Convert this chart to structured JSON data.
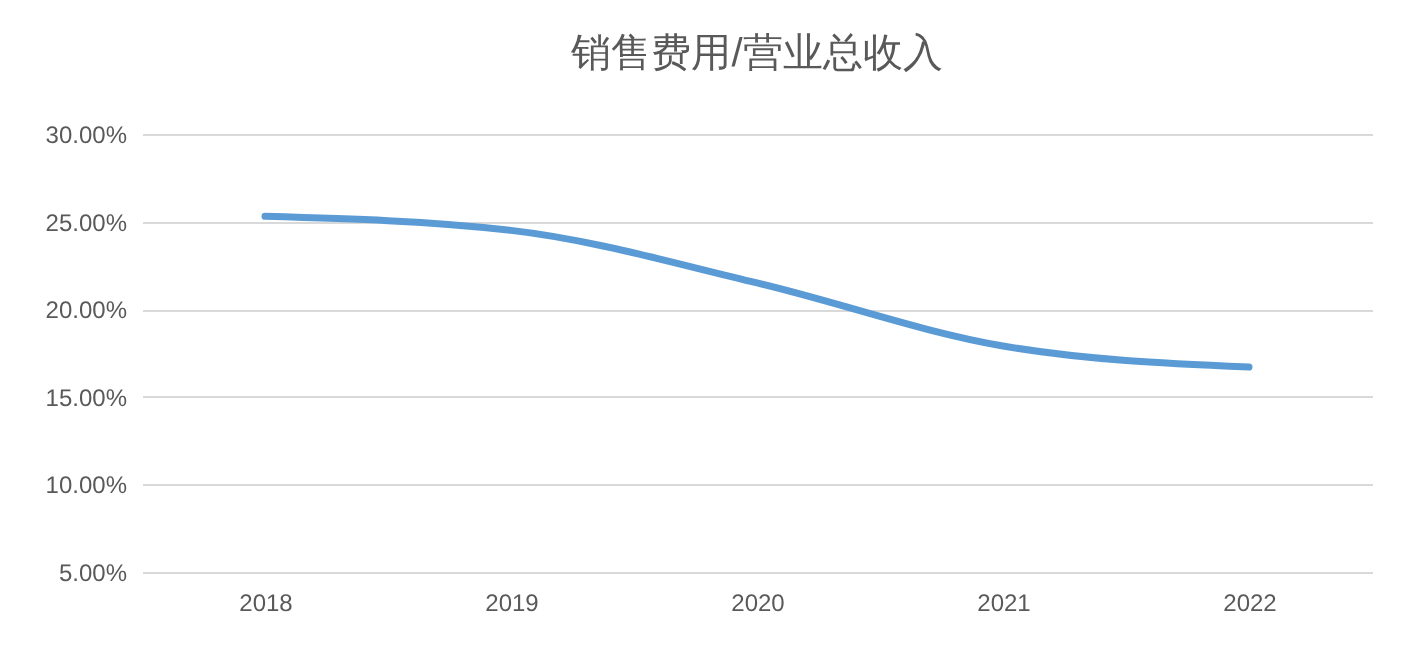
{
  "chart_data": {
    "type": "line",
    "title": "销售费用/营业总收入",
    "categories": [
      "2018",
      "2019",
      "2020",
      "2021",
      "2022"
    ],
    "series": [
      {
        "color": "#5b9bd5",
        "values": [
          25.3,
          24.5,
          21.5,
          17.9,
          16.7
        ]
      }
    ],
    "ylim": [
      5,
      30
    ],
    "yticks": [
      {
        "value": 5,
        "label": "5.00%"
      },
      {
        "value": 10,
        "label": "10.00%"
      },
      {
        "value": 15,
        "label": "15.00%"
      },
      {
        "value": 20,
        "label": "20.00%"
      },
      {
        "value": 25,
        "label": "25.00%"
      },
      {
        "value": 30,
        "label": "30.00%"
      }
    ],
    "grid": "y",
    "marker": "none",
    "line_style": "solid"
  }
}
